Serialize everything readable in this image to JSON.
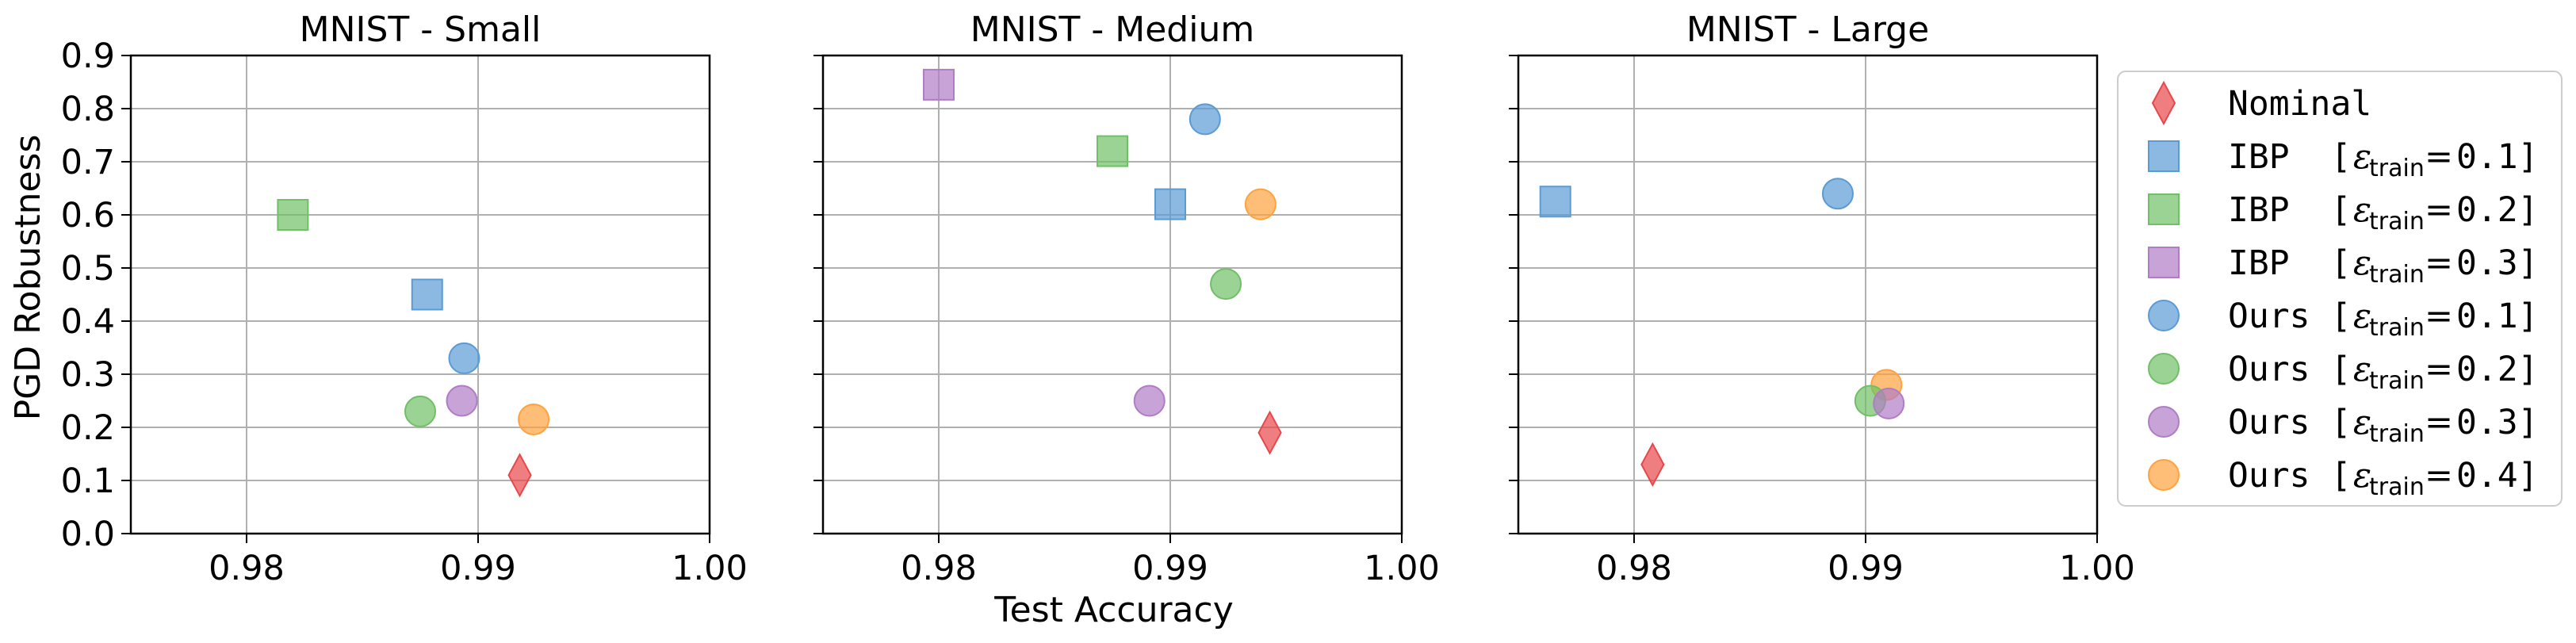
{
  "chart_data": [
    {
      "type": "scatter",
      "title": "MNIST - Small",
      "xlim": [
        0.975,
        1.0
      ],
      "ylim": [
        0.0,
        0.9
      ],
      "xticks": [
        "0.98",
        "0.99",
        "1.00"
      ],
      "yticks": [
        "0.0",
        "0.1",
        "0.2",
        "0.3",
        "0.4",
        "0.5",
        "0.6",
        "0.7",
        "0.8",
        "0.9"
      ],
      "grid": true,
      "points": [
        {
          "series": "ibp_0.2",
          "x": 0.982,
          "y": 0.6
        },
        {
          "series": "ibp_0.1",
          "x": 0.9878,
          "y": 0.45
        },
        {
          "series": "ours_0.1",
          "x": 0.9894,
          "y": 0.33
        },
        {
          "series": "ours_0.2",
          "x": 0.9875,
          "y": 0.23
        },
        {
          "series": "ours_0.3",
          "x": 0.9893,
          "y": 0.25
        },
        {
          "series": "ours_0.4",
          "x": 0.9924,
          "y": 0.215
        },
        {
          "series": "nominal",
          "x": 0.9918,
          "y": 0.11
        }
      ]
    },
    {
      "type": "scatter",
      "title": "MNIST - Medium",
      "xlim": [
        0.975,
        1.0
      ],
      "ylim": [
        0.0,
        0.9
      ],
      "xticks": [
        "0.98",
        "0.99",
        "1.00"
      ],
      "grid": true,
      "points": [
        {
          "series": "ibp_0.3",
          "x": 0.98,
          "y": 0.845
        },
        {
          "series": "ibp_0.2",
          "x": 0.9875,
          "y": 0.72
        },
        {
          "series": "ours_0.1",
          "x": 0.9915,
          "y": 0.78
        },
        {
          "series": "ibp_0.1",
          "x": 0.99,
          "y": 0.62
        },
        {
          "series": "ours_0.4",
          "x": 0.9939,
          "y": 0.62
        },
        {
          "series": "ours_0.2",
          "x": 0.9924,
          "y": 0.47
        },
        {
          "series": "ours_0.3",
          "x": 0.9891,
          "y": 0.25
        },
        {
          "series": "nominal",
          "x": 0.9943,
          "y": 0.19
        }
      ]
    },
    {
      "type": "scatter",
      "title": "MNIST - Large",
      "xlim": [
        0.975,
        1.0
      ],
      "ylim": [
        0.0,
        0.9
      ],
      "xticks": [
        "0.98",
        "0.99",
        "1.00"
      ],
      "grid": true,
      "points": [
        {
          "series": "ibp_0.1",
          "x": 0.9766,
          "y": 0.625
        },
        {
          "series": "ours_0.1",
          "x": 0.9888,
          "y": 0.64
        },
        {
          "series": "ours_0.4",
          "x": 0.9909,
          "y": 0.28
        },
        {
          "series": "ours_0.2",
          "x": 0.9902,
          "y": 0.25
        },
        {
          "series": "ours_0.3",
          "x": 0.991,
          "y": 0.245
        },
        {
          "series": "nominal",
          "x": 0.9808,
          "y": 0.13
        }
      ]
    }
  ],
  "axis_labels": {
    "ylabel": "PGD Robustness",
    "xlabel": "Test Accuracy"
  },
  "legend": {
    "placement": "right",
    "entries": [
      {
        "id": "nominal",
        "marker": "diamond",
        "color": "#e8474a",
        "text": "Nominal",
        "eps": ""
      },
      {
        "id": "ibp_0.1",
        "marker": "square",
        "color": "#5b9bd5",
        "text": "IBP  [",
        "eps": "0.1]"
      },
      {
        "id": "ibp_0.2",
        "marker": "square",
        "color": "#6fc066",
        "text": "IBP  [",
        "eps": "0.2]"
      },
      {
        "id": "ibp_0.3",
        "marker": "square",
        "color": "#b07cc6",
        "text": "IBP  [",
        "eps": "0.3]"
      },
      {
        "id": "ours_0.1",
        "marker": "circle",
        "color": "#5b9bd5",
        "text": "Ours [",
        "eps": "0.1]"
      },
      {
        "id": "ours_0.2",
        "marker": "circle",
        "color": "#6fc066",
        "text": "Ours [",
        "eps": "0.2]"
      },
      {
        "id": "ours_0.3",
        "marker": "circle",
        "color": "#b07cc6",
        "text": "Ours [",
        "eps": "0.3]"
      },
      {
        "id": "ours_0.4",
        "marker": "circle",
        "color": "#ffa23f",
        "text": "Ours [",
        "eps": "0.4]"
      }
    ]
  },
  "math": {
    "epsilon": "ε",
    "subscript": "train",
    "equals": "="
  }
}
